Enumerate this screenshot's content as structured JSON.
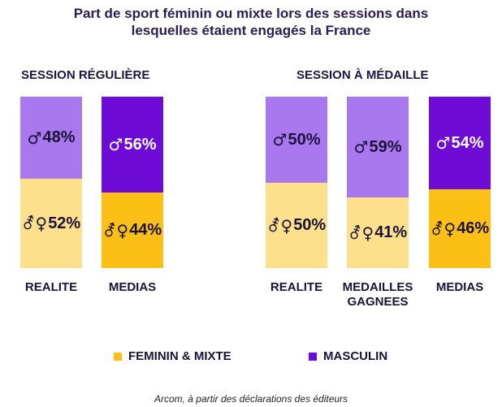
{
  "chart_data": {
    "type": "bar",
    "title_lines": [
      "Part de sport féminin ou mixte lors des sessions dans",
      "lesquelles étaient engagés la France"
    ],
    "symbols": {
      "male": "♂",
      "mixed": "⚦♀"
    },
    "series": [
      {
        "name": "FEMININ & MIXTE",
        "color": "#fcbf16",
        "color_light": "#fde08c"
      },
      {
        "name": "MASCULIN",
        "color": "#6f0bd6",
        "color_light": "#a978ef"
      }
    ],
    "groups": [
      {
        "title": "SESSION RÉGULIÈRE",
        "bars": [
          {
            "category_lines": [
              "REALITE"
            ],
            "feminin_mixte": 52,
            "masculin": 48,
            "style": "light"
          },
          {
            "category_lines": [
              "MEDIAS"
            ],
            "feminin_mixte": 44,
            "masculin": 56,
            "style": "dark"
          }
        ]
      },
      {
        "title": "SESSION À MÉDAILLE",
        "bars": [
          {
            "category_lines": [
              "REALITE"
            ],
            "feminin_mixte": 50,
            "masculin": 50,
            "style": "light"
          },
          {
            "category_lines": [
              "MEDAILLES",
              "GAGNEES"
            ],
            "feminin_mixte": 41,
            "masculin": 59,
            "style": "light"
          },
          {
            "category_lines": [
              "MEDIAS"
            ],
            "feminin_mixte": 46,
            "masculin": 54,
            "style": "dark"
          }
        ]
      }
    ],
    "legend_position": "bottom",
    "ylim": [
      0,
      100
    ]
  },
  "source": "Arcom, à partir des déclarations des éditeurs"
}
